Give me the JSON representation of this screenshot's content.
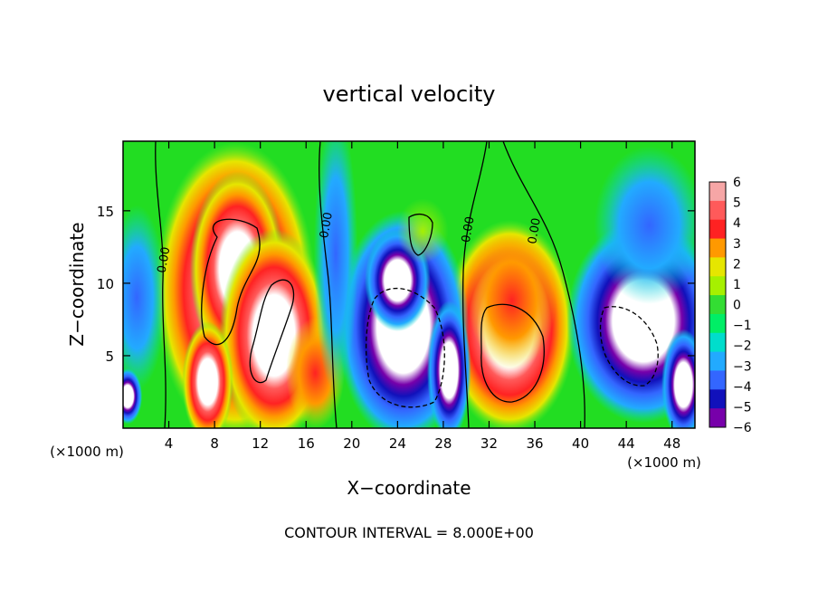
{
  "chart_data": {
    "type": "heatmap",
    "title": "vertical velocity",
    "xlabel": "X−coordinate",
    "ylabel": "Z−coordinate",
    "x_unit_label": "(×1000 m)",
    "y_unit_label": "(×1000 m)",
    "footer": "CONTOUR INTERVAL = 8.000E+00",
    "xlim": [
      0,
      50
    ],
    "ylim": [
      0,
      19.8
    ],
    "x_ticks": [
      4,
      8,
      12,
      16,
      20,
      24,
      28,
      32,
      36,
      40,
      44,
      48
    ],
    "y_ticks": [
      5,
      10,
      15
    ],
    "colorbar": {
      "ticks": [
        6,
        5,
        4,
        3,
        2,
        1,
        0,
        -1,
        -2,
        -3,
        -4,
        -5,
        -6
      ],
      "tick_labels": [
        "6",
        "5",
        "4",
        "3",
        "2",
        "1",
        "0",
        "−1",
        "−2",
        "−3",
        "−4",
        "−5",
        "−6"
      ],
      "colors": [
        "#f6a6a6",
        "#ff5a5a",
        "#ff2222",
        "#ff9900",
        "#e6e600",
        "#a6f000",
        "#33dd33",
        "#00ee66",
        "#00ddcc",
        "#22aaff",
        "#3366ff",
        "#1111bb",
        "#7700aa"
      ],
      "clip_high_color": "#ffffff",
      "clip_low_color": "#ffffff",
      "background_color": "#22dd22"
    },
    "contour_labels": [
      {
        "text": "0.00",
        "x": 3.6,
        "y": 11.6
      },
      {
        "text": "0.00",
        "x": 17.8,
        "y": 14.0
      },
      {
        "text": "0.00",
        "x": 30.2,
        "y": 13.7
      },
      {
        "text": "0.00",
        "x": 36.0,
        "y": 13.6
      }
    ],
    "cells": [
      {
        "x": 9.8,
        "y": 9.5,
        "sx": 4.4,
        "sy": 6.4,
        "v": 6
      },
      {
        "x": 10.0,
        "y": 11.0,
        "sx": 2.6,
        "sy": 4.2,
        "v": 5
      },
      {
        "x": 13.2,
        "y": 6.4,
        "sx": 3.0,
        "sy": 4.6,
        "v": 6
      },
      {
        "x": 7.4,
        "y": 3.2,
        "sx": 1.4,
        "sy": 2.6,
        "v": 5
      },
      {
        "x": 16.8,
        "y": 3.8,
        "sx": 1.6,
        "sy": 2.4,
        "v": 3
      },
      {
        "x": 33.8,
        "y": 7.0,
        "sx": 3.6,
        "sy": 4.6,
        "v": 6
      },
      {
        "x": 34.0,
        "y": 8.8,
        "sx": 2.4,
        "sy": 3.0,
        "v": 4
      },
      {
        "x": 24.5,
        "y": 7.0,
        "sx": 3.6,
        "sy": 5.0,
        "v": -6
      },
      {
        "x": 24.0,
        "y": 10.2,
        "sx": 1.8,
        "sy": 2.2,
        "v": -5
      },
      {
        "x": 28.5,
        "y": 4.0,
        "sx": 1.2,
        "sy": 3.0,
        "v": -5
      },
      {
        "x": 45.5,
        "y": 7.4,
        "sx": 4.2,
        "sy": 4.4,
        "v": -6
      },
      {
        "x": 46.0,
        "y": 14.0,
        "sx": 3.0,
        "sy": 3.4,
        "v": -4
      },
      {
        "x": 49.0,
        "y": 3.0,
        "sx": 1.2,
        "sy": 2.4,
        "v": -5
      },
      {
        "x": 1.2,
        "y": 9.0,
        "sx": 1.6,
        "sy": 4.0,
        "v": -2
      },
      {
        "x": 0.4,
        "y": 2.2,
        "sx": 0.8,
        "sy": 1.2,
        "v": -5
      },
      {
        "x": 18.6,
        "y": 12.0,
        "sx": 1.2,
        "sy": 6.0,
        "v": -2
      },
      {
        "x": 26.2,
        "y": 13.6,
        "sx": 1.4,
        "sy": 1.4,
        "v": 2
      }
    ]
  }
}
